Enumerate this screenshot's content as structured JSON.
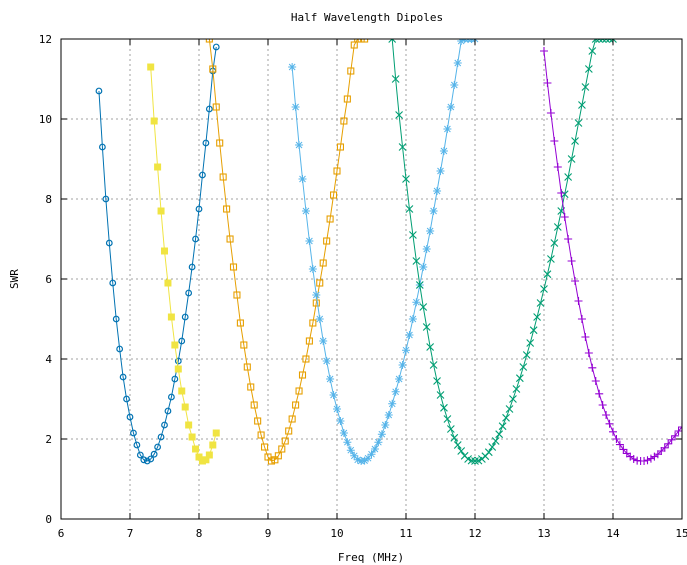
{
  "chart_data": {
    "type": "line",
    "title": "Half Wavelength Dipoles",
    "xlabel": "Freq (MHz)",
    "ylabel": "SWR",
    "xlim": [
      6,
      15
    ],
    "ylim": [
      0,
      12
    ],
    "x_ticks": [
      "6",
      "7",
      "8",
      "9",
      "10",
      "11",
      "12",
      "13",
      "14",
      "15"
    ],
    "y_ticks": [
      "0",
      "2",
      "4",
      "6",
      "8",
      "10",
      "12"
    ],
    "grid": true,
    "legend": "none",
    "series": [
      {
        "color": "#0072b2",
        "marker": "circle",
        "x": [
          6.55,
          6.6,
          6.65,
          6.7,
          6.75,
          6.8,
          6.85,
          6.9,
          6.95,
          7.0,
          7.05,
          7.1,
          7.15,
          7.2,
          7.25,
          7.3,
          7.35,
          7.4,
          7.45,
          7.5,
          7.55,
          7.6,
          7.65,
          7.7,
          7.75,
          7.8,
          7.85,
          7.9,
          7.95,
          8.0,
          8.05,
          8.1,
          8.15,
          8.2,
          8.25
        ],
        "y": [
          10.7,
          9.3,
          8.0,
          6.9,
          5.9,
          5.0,
          4.25,
          3.55,
          3.0,
          2.55,
          2.15,
          1.85,
          1.6,
          1.48,
          1.45,
          1.5,
          1.62,
          1.8,
          2.05,
          2.35,
          2.7,
          3.05,
          3.5,
          3.95,
          4.45,
          5.05,
          5.65,
          6.3,
          7.0,
          7.75,
          8.6,
          9.4,
          10.25,
          11.2,
          11.8
        ]
      },
      {
        "color": "#f0e442",
        "marker": "filled-square",
        "x": [
          7.3,
          7.35,
          7.4,
          7.45,
          7.5,
          7.55,
          7.6,
          7.65,
          7.7,
          7.75,
          7.8,
          7.85,
          7.9,
          7.95,
          8.0,
          8.05,
          8.1,
          8.15,
          8.2,
          8.25
        ],
        "y": [
          11.3,
          9.95,
          8.8,
          7.7,
          6.7,
          5.9,
          5.05,
          4.35,
          3.75,
          3.2,
          2.8,
          2.35,
          2.05,
          1.75,
          1.55,
          1.45,
          1.48,
          1.6,
          1.85,
          2.15
        ]
      },
      {
        "color": "#e69f00",
        "marker": "square",
        "x": [
          8.15,
          8.2,
          8.25,
          8.3,
          8.35,
          8.4,
          8.45,
          8.5,
          8.55,
          8.6,
          8.65,
          8.7,
          8.75,
          8.8,
          8.85,
          8.9,
          8.95,
          9.0,
          9.05,
          9.1,
          9.15,
          9.2,
          9.25,
          9.3,
          9.35,
          9.4,
          9.45,
          9.5,
          9.55,
          9.6,
          9.65,
          9.7,
          9.75,
          9.8,
          9.85,
          9.9,
          9.95,
          10.0,
          10.05,
          10.1,
          10.15,
          10.2,
          10.25,
          10.3,
          10.35,
          10.4
        ],
        "y": [
          12.0,
          11.25,
          10.3,
          9.4,
          8.55,
          7.75,
          7.0,
          6.3,
          5.6,
          4.9,
          4.35,
          3.8,
          3.3,
          2.85,
          2.45,
          2.1,
          1.8,
          1.55,
          1.45,
          1.48,
          1.58,
          1.75,
          1.95,
          2.2,
          2.5,
          2.85,
          3.2,
          3.6,
          4.0,
          4.45,
          4.9,
          5.4,
          5.9,
          6.4,
          6.95,
          7.5,
          8.1,
          8.7,
          9.3,
          9.95,
          10.5,
          11.2,
          11.85,
          12.0,
          12.0,
          12.0
        ]
      },
      {
        "color": "#56b4e9",
        "marker": "star",
        "x": [
          9.35,
          9.4,
          9.45,
          9.5,
          9.55,
          9.6,
          9.65,
          9.7,
          9.75,
          9.8,
          9.85,
          9.9,
          9.95,
          10.0,
          10.05,
          10.1,
          10.15,
          10.2,
          10.25,
          10.3,
          10.35,
          10.4,
          10.45,
          10.5,
          10.55,
          10.6,
          10.65,
          10.7,
          10.75,
          10.8,
          10.85,
          10.9,
          10.95,
          11.0,
          11.05,
          11.1,
          11.15,
          11.2,
          11.25,
          11.3,
          11.35,
          11.4,
          11.45,
          11.5,
          11.55,
          11.6,
          11.65,
          11.7,
          11.75,
          11.8,
          11.85,
          11.9,
          11.95,
          12.0
        ],
        "y": [
          11.3,
          10.3,
          9.35,
          8.5,
          7.7,
          6.95,
          6.25,
          5.6,
          5.0,
          4.45,
          3.95,
          3.5,
          3.1,
          2.75,
          2.45,
          2.15,
          1.92,
          1.72,
          1.58,
          1.48,
          1.45,
          1.46,
          1.52,
          1.62,
          1.75,
          1.92,
          2.12,
          2.35,
          2.6,
          2.88,
          3.18,
          3.5,
          3.85,
          4.22,
          4.6,
          5.0,
          5.42,
          5.85,
          6.3,
          6.75,
          7.2,
          7.7,
          8.2,
          8.7,
          9.2,
          9.75,
          10.3,
          10.85,
          11.4,
          11.95,
          12.0,
          12.0,
          12.0,
          12.0
        ]
      },
      {
        "color": "#009e73",
        "marker": "x",
        "x": [
          10.8,
          10.85,
          10.9,
          10.95,
          11.0,
          11.05,
          11.1,
          11.15,
          11.2,
          11.25,
          11.3,
          11.35,
          11.4,
          11.45,
          11.5,
          11.55,
          11.6,
          11.65,
          11.7,
          11.75,
          11.8,
          11.85,
          11.9,
          11.95,
          12.0,
          12.05,
          12.1,
          12.15,
          12.2,
          12.25,
          12.3,
          12.35,
          12.4,
          12.45,
          12.5,
          12.55,
          12.6,
          12.65,
          12.7,
          12.75,
          12.8,
          12.85,
          12.9,
          12.95,
          13.0,
          13.05,
          13.1,
          13.15,
          13.2,
          13.25,
          13.3,
          13.35,
          13.4,
          13.45,
          13.5,
          13.55,
          13.6,
          13.65,
          13.7,
          13.75,
          13.8,
          13.85,
          13.9,
          13.95,
          14.0
        ],
        "y": [
          12.0,
          11.0,
          10.1,
          9.3,
          8.5,
          7.75,
          7.1,
          6.45,
          5.85,
          5.3,
          4.8,
          4.3,
          3.85,
          3.45,
          3.1,
          2.78,
          2.5,
          2.25,
          2.03,
          1.85,
          1.7,
          1.58,
          1.5,
          1.46,
          1.45,
          1.46,
          1.5,
          1.57,
          1.67,
          1.8,
          1.95,
          2.12,
          2.32,
          2.53,
          2.75,
          3.0,
          3.25,
          3.52,
          3.8,
          4.1,
          4.4,
          4.72,
          5.05,
          5.4,
          5.75,
          6.12,
          6.5,
          6.9,
          7.3,
          7.7,
          8.12,
          8.55,
          9.0,
          9.45,
          9.9,
          10.35,
          10.8,
          11.25,
          11.7,
          12.0,
          12.0,
          12.0,
          12.0,
          12.0,
          12.0
        ]
      },
      {
        "color": "#9400d3",
        "marker": "plus",
        "x": [
          13.0,
          13.05,
          13.1,
          13.15,
          13.2,
          13.25,
          13.3,
          13.35,
          13.4,
          13.45,
          13.5,
          13.55,
          13.6,
          13.65,
          13.7,
          13.75,
          13.8,
          13.85,
          13.9,
          13.95,
          14.0,
          14.05,
          14.1,
          14.15,
          14.2,
          14.25,
          14.3,
          14.35,
          14.4,
          14.45,
          14.5,
          14.55,
          14.6,
          14.65,
          14.7,
          14.75,
          14.8,
          14.85,
          14.9,
          14.95,
          15.0
        ],
        "y": [
          11.7,
          10.9,
          10.15,
          9.45,
          8.8,
          8.15,
          7.55,
          7.0,
          6.45,
          5.95,
          5.45,
          5.0,
          4.55,
          4.15,
          3.78,
          3.45,
          3.13,
          2.85,
          2.6,
          2.38,
          2.18,
          2.0,
          1.86,
          1.74,
          1.64,
          1.56,
          1.5,
          1.46,
          1.45,
          1.45,
          1.47,
          1.51,
          1.56,
          1.62,
          1.7,
          1.78,
          1.88,
          1.98,
          2.08,
          2.2,
          2.3
        ]
      }
    ]
  }
}
